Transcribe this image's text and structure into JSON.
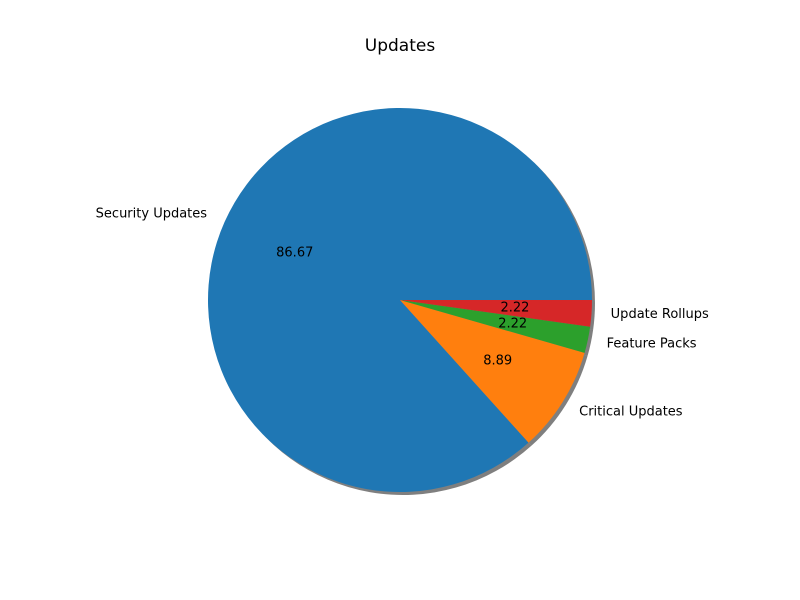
{
  "chart_data": {
    "type": "pie",
    "title": "Updates",
    "labels": [
      "Security Updates",
      "Critical Updates",
      "Feature Packs",
      "Update Rollups"
    ],
    "values": [
      86.67,
      8.89,
      2.22,
      2.22
    ],
    "value_labels": [
      "86.67",
      "8.89",
      "2.22",
      "2.22"
    ],
    "colors": [
      "#1f77b4",
      "#ff7f0e",
      "#2ca02c",
      "#d62728"
    ],
    "start_angle_deg": 0,
    "direction": "counterclockwise",
    "shadow": true,
    "legend": "none"
  }
}
